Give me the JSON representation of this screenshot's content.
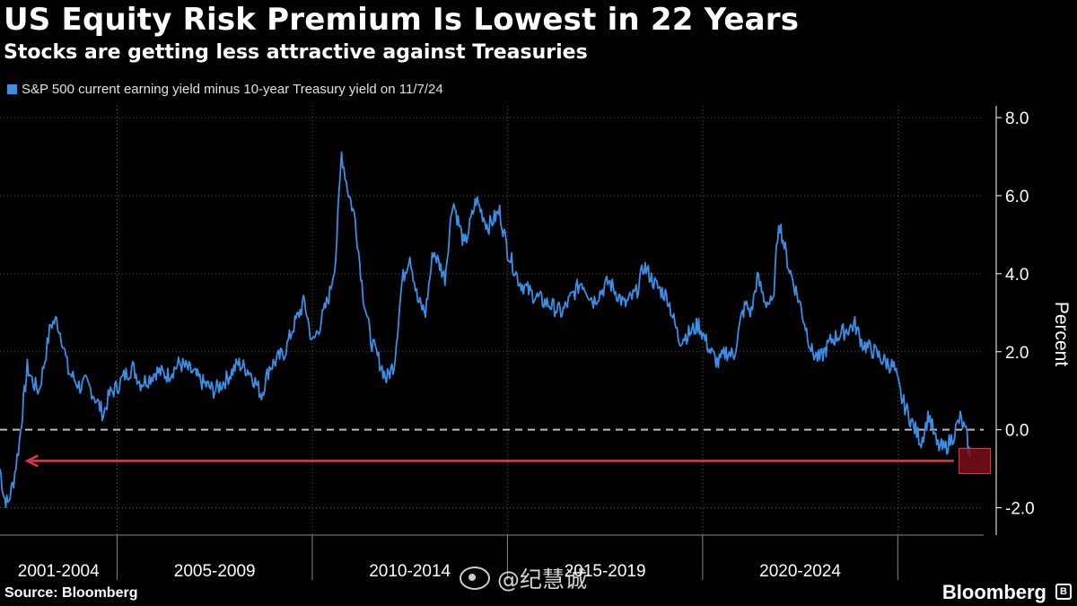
{
  "header": {
    "title": "US Equity Risk Premium Is Lowest in 22 Years",
    "subtitle": "Stocks are getting less attractive against Treasuries"
  },
  "colors": {
    "series": "#3a8ee6",
    "arrow": "#e23b4b",
    "highlight": "#7a0f1c",
    "zero_line": "#bdbdbd",
    "grid": "#555555"
  },
  "footer": {
    "source": "Source: Bloomberg",
    "brand": "Bloomberg",
    "watermark": "@纪慧诚"
  },
  "chart_data": {
    "type": "line",
    "title": "US Equity Risk Premium Is Lowest in 22 Years",
    "subtitle": "Stocks are getting less attractive against Treasuries",
    "ylabel": "Percent",
    "ylim": [
      -2.7,
      8.3
    ],
    "xlim": [
      2000.0,
      2025.2
    ],
    "y_ticks": [
      8.0,
      6.0,
      4.0,
      2.0,
      0.0,
      -2.0
    ],
    "y_tick_labels": [
      "8.0",
      "6.0",
      "4.0",
      "2.0",
      "0.0",
      "-2.0"
    ],
    "x_period_labels": [
      "2001-2004",
      "2005-2009",
      "2010-2014",
      "2015-2019",
      "2020-2024"
    ],
    "x_period_centers": [
      2001.5,
      2005.5,
      2010.5,
      2015.5,
      2020.5
    ],
    "x_separators": [
      2003.0,
      2008.0,
      2013.0,
      2018.0,
      2023.0
    ],
    "x_gridlines": [
      2003.0,
      2008.0,
      2013.0,
      2018.0,
      2023.0
    ],
    "grid": true,
    "zero_line": true,
    "legend_position": "top-left",
    "series": [
      {
        "name": "S&P 500 current earning yield minus 10-year Treasury yield on 11/7/24",
        "x": [
          2000.0,
          2000.1,
          2000.2,
          2000.35,
          2000.5,
          2000.6,
          2000.7,
          2000.85,
          2001.0,
          2001.15,
          2001.3,
          2001.45,
          2001.6,
          2001.75,
          2001.9,
          2002.05,
          2002.2,
          2002.35,
          2002.5,
          2002.65,
          2002.8,
          2003.0,
          2003.2,
          2003.4,
          2003.6,
          2003.8,
          2004.0,
          2004.3,
          2004.6,
          2004.9,
          2005.2,
          2005.5,
          2005.8,
          2006.1,
          2006.4,
          2006.7,
          2006.9,
          2007.0,
          2007.3,
          2007.5,
          2007.8,
          2008.0,
          2008.2,
          2008.45,
          2008.6,
          2008.75,
          2008.9,
          2009.1,
          2009.3,
          2009.5,
          2009.7,
          2009.9,
          2010.1,
          2010.3,
          2010.5,
          2010.7,
          2010.9,
          2011.1,
          2011.4,
          2011.6,
          2011.9,
          2012.2,
          2012.5,
          2012.8,
          2013.0,
          2013.3,
          2013.6,
          2013.9,
          2014.1,
          2014.4,
          2014.7,
          2014.9,
          2015.2,
          2015.6,
          2016.0,
          2016.3,
          2016.5,
          2016.8,
          2017.1,
          2017.4,
          2017.7,
          2017.9,
          2018.2,
          2018.4,
          2018.6,
          2018.8,
          2019.0,
          2019.1,
          2019.25,
          2019.4,
          2019.6,
          2019.8,
          2019.95,
          2020.2,
          2020.5,
          2020.8,
          2021.0,
          2021.3,
          2021.6,
          2021.9,
          2022.1,
          2022.4,
          2022.6,
          2022.9,
          2023.1,
          2023.4,
          2023.6,
          2023.8,
          2024.0,
          2024.2,
          2024.4,
          2024.6,
          2024.75,
          2024.85
        ],
        "values": [
          -1.0,
          -1.7,
          -1.9,
          -1.3,
          -0.3,
          0.7,
          1.6,
          1.2,
          1.0,
          1.8,
          2.7,
          2.8,
          2.3,
          1.5,
          1.3,
          1.1,
          1.2,
          1.0,
          0.7,
          0.4,
          0.9,
          1.1,
          1.4,
          1.6,
          1.2,
          1.3,
          1.5,
          1.4,
          1.7,
          1.5,
          1.2,
          1.0,
          1.3,
          1.7,
          1.5,
          0.9,
          1.6,
          1.7,
          2.0,
          2.6,
          3.3,
          2.2,
          2.7,
          3.5,
          4.4,
          7.1,
          6.2,
          5.4,
          3.5,
          2.3,
          1.8,
          1.3,
          1.7,
          3.8,
          4.5,
          3.3,
          3.0,
          4.6,
          3.9,
          5.9,
          4.7,
          5.9,
          5.2,
          5.6,
          4.6,
          3.8,
          3.5,
          3.3,
          3.2,
          3.0,
          3.5,
          3.8,
          3.3,
          3.8,
          3.2,
          3.5,
          4.2,
          3.7,
          3.4,
          2.3,
          2.5,
          2.7,
          2.0,
          1.7,
          2.0,
          1.9,
          2.9,
          3.2,
          3.0,
          3.9,
          3.3,
          3.2,
          5.4,
          4.2,
          3.2,
          2.0,
          1.8,
          2.3,
          2.5,
          2.7,
          2.2,
          2.0,
          1.8,
          1.6,
          0.8,
          0.1,
          -0.3,
          0.4,
          -0.4,
          -0.5,
          -0.2,
          0.3,
          -0.1,
          -0.7
        ]
      }
    ],
    "annotations": [
      {
        "type": "arrow",
        "from": [
          2024.8,
          -0.8
        ],
        "to": [
          2000.7,
          -0.8
        ]
      },
      {
        "type": "highlight_box",
        "at": [
          2024.8,
          -0.8
        ]
      }
    ]
  }
}
